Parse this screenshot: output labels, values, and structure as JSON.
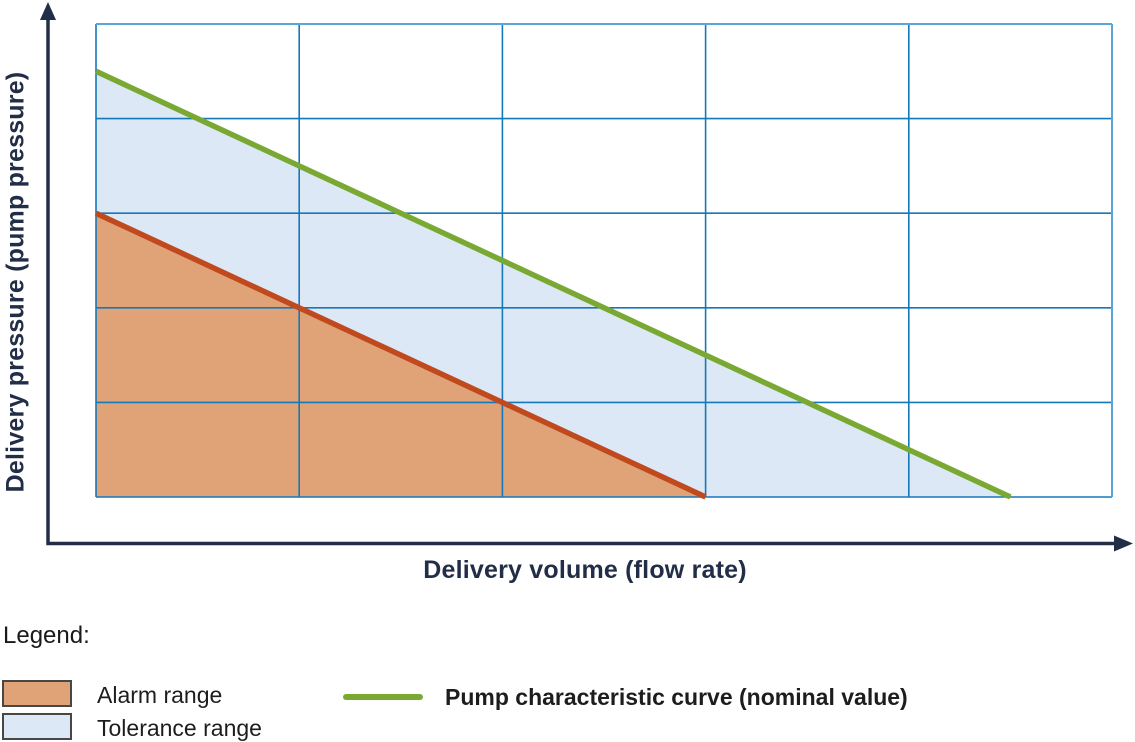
{
  "colors": {
    "axis_navy": "#222e47",
    "grid_blue": "#1478bb",
    "grid_border_light": "#58a6dc",
    "nominal_green": "#7aa933",
    "alarm_line_red": "#c04a1e",
    "alarm_fill_orange": "#dfa377",
    "tolerance_fill_blue": "#dde8f6",
    "swatch_border_gray": "#474747"
  },
  "legend": {
    "title": "Legend:",
    "items": [
      {
        "label": "Alarm range",
        "swatch_type": "area",
        "swatch_color": "alarm_fill_orange"
      },
      {
        "label": "Tolerance range",
        "swatch_type": "area",
        "swatch_color": "tolerance_fill_blue"
      },
      {
        "label": "Pump characteristic curve (nominal value)",
        "swatch_type": "line",
        "swatch_color": "nominal_green"
      }
    ]
  },
  "chart_data": {
    "type": "area",
    "title": "",
    "xlabel": "Delivery volume (flow rate)",
    "ylabel": "Delivery pressure (pump pressure)",
    "xlim": [
      0,
      5
    ],
    "ylim": [
      0,
      5
    ],
    "grid": true,
    "tick_labels_visible": false,
    "x_gridlines": [
      0,
      1,
      2,
      3,
      4,
      5
    ],
    "y_gridlines": [
      0,
      1,
      2,
      3,
      4,
      5
    ],
    "series": [
      {
        "name": "pump-characteristic-curve-nominal",
        "legend": "Pump characteristic curve (nominal value)",
        "color": "nominal_green",
        "x": [
          0,
          4.5
        ],
        "y": [
          4.5,
          0
        ]
      },
      {
        "name": "alarm-range-boundary",
        "legend": null,
        "color": "alarm_line_red",
        "x": [
          0,
          3
        ],
        "y": [
          3,
          0
        ]
      }
    ],
    "regions": [
      {
        "name": "alarm-range",
        "legend": "Alarm range",
        "fill": "alarm_fill_orange",
        "points": [
          [
            0,
            3
          ],
          [
            3,
            0
          ],
          [
            0,
            0
          ]
        ]
      },
      {
        "name": "tolerance-range",
        "legend": "Tolerance range",
        "fill": "tolerance_fill_blue",
        "points": [
          [
            0,
            4.5
          ],
          [
            4.5,
            0
          ],
          [
            3,
            0
          ],
          [
            0,
            3
          ]
        ]
      }
    ],
    "legend_position": "below-left"
  }
}
